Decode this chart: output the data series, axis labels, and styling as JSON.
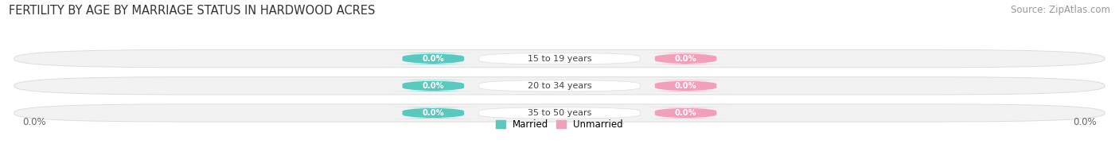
{
  "title": "FERTILITY BY AGE BY MARRIAGE STATUS IN HARDWOOD ACRES",
  "source": "Source: ZipAtlas.com",
  "age_groups": [
    "15 to 19 years",
    "20 to 34 years",
    "35 to 50 years"
  ],
  "married_values": [
    0.0,
    0.0,
    0.0
  ],
  "unmarried_values": [
    0.0,
    0.0,
    0.0
  ],
  "married_color": "#5BC8C0",
  "unmarried_color": "#F0A0B8",
  "bar_bg_color": "#F2F2F2",
  "bar_bg_edge_color": "#DDDDDD",
  "center_bg_color": "#FFFFFF",
  "title_fontsize": 10.5,
  "source_fontsize": 8.5,
  "axis_label_value": "0.0%",
  "background_color": "#FFFFFF",
  "center_label_color": "#444444"
}
